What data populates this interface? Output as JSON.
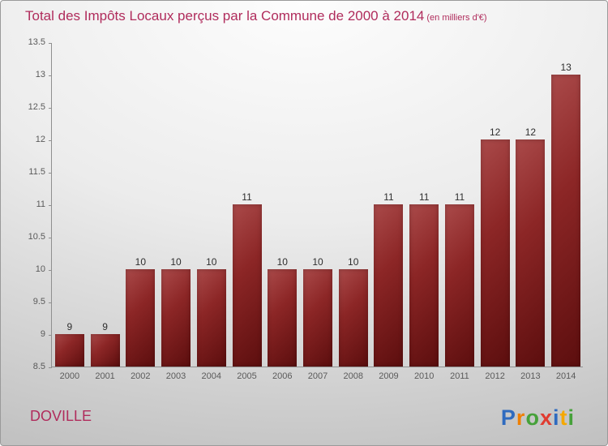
{
  "chart_data": {
    "type": "bar",
    "title": "Total des Impôts Locaux perçus par la Commune de 2000 à 2014",
    "subtitle": "(en milliers d'€)",
    "categories": [
      "2000",
      "2001",
      "2002",
      "2003",
      "2004",
      "2005",
      "2006",
      "2007",
      "2008",
      "2009",
      "2010",
      "2011",
      "2012",
      "2013",
      "2014"
    ],
    "values": [
      9,
      9,
      10,
      10,
      10,
      11,
      10,
      10,
      10,
      11,
      11,
      11,
      12,
      12,
      13
    ],
    "xlabel": "",
    "ylabel": "",
    "ylim": [
      8.5,
      13.5
    ],
    "yticks": [
      "8.5",
      "9",
      "9.5",
      "10",
      "10.5",
      "11",
      "11.5",
      "12",
      "12.5",
      "13",
      "13.5"
    ],
    "grid": false,
    "legend": "none",
    "bar_color": "#8c2626",
    "bar_gradient_light": "#aa4a4a",
    "bar_gradient_dark": "#5c0e0e"
  },
  "footer": {
    "commune": "DOVILLE"
  },
  "logo": {
    "name": "Proxiti",
    "letters": [
      {
        "ch": "P",
        "color": "#2f6bbf"
      },
      {
        "ch": "r",
        "color": "#ef7f00"
      },
      {
        "ch": "o",
        "color": "#46a13a"
      },
      {
        "ch": "x",
        "color": "#e03c31"
      },
      {
        "ch": "i",
        "color": "#2f6bbf"
      },
      {
        "ch": "t",
        "color": "#f5a800"
      },
      {
        "ch": "i",
        "color": "#46a13a"
      }
    ]
  },
  "colors": {
    "title": "#b02c5c",
    "axis": "#8f8f8f",
    "tick_label": "#5a5a5a",
    "value_label": "#2e2e2e"
  }
}
